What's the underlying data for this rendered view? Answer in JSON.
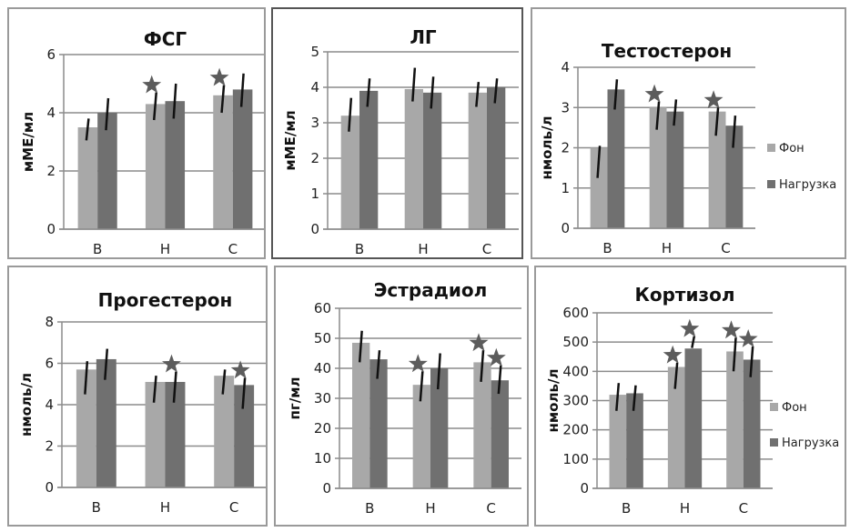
{
  "legend": {
    "series": [
      "Фон",
      "Нагрузка"
    ],
    "colors": [
      "#a8a8a8",
      "#707070"
    ]
  },
  "chart_data": [
    {
      "type": "bar",
      "title": "ФСГ",
      "ylabel": "мМЕ/мл",
      "xlabel": "",
      "categories": [
        "В",
        "Н",
        "С"
      ],
      "ylim": [
        0,
        6
      ],
      "yticks": [
        0,
        2,
        4,
        6
      ],
      "grid": true,
      "legend": "none",
      "series": [
        {
          "name": "Фон",
          "values": [
            3.5,
            4.3,
            4.6
          ],
          "err_low": [
            3.05,
            3.75,
            4.0
          ],
          "err_high": [
            3.8,
            4.7,
            4.95
          ]
        },
        {
          "name": "Нагрузка",
          "values": [
            4.0,
            4.4,
            4.8
          ],
          "err_low": [
            3.4,
            3.8,
            4.2
          ],
          "err_high": [
            4.5,
            5.0,
            5.35
          ]
        }
      ],
      "stars": [
        {
          "series": 0,
          "category": 1
        },
        {
          "series": 0,
          "category": 2
        }
      ]
    },
    {
      "type": "bar",
      "title": "ЛГ",
      "ylabel": "мМЕ/мл",
      "xlabel": "",
      "categories": [
        "В",
        "Н",
        "С"
      ],
      "ylim": [
        0,
        5
      ],
      "yticks": [
        0,
        1,
        2,
        3,
        4,
        5
      ],
      "grid": true,
      "legend": "none",
      "series": [
        {
          "name": "Фон",
          "values": [
            3.2,
            3.95,
            3.85
          ],
          "err_low": [
            2.75,
            3.6,
            3.45
          ],
          "err_high": [
            3.7,
            4.55,
            4.15
          ]
        },
        {
          "name": "Нагрузка",
          "values": [
            3.9,
            3.85,
            4.0
          ],
          "err_low": [
            3.45,
            3.4,
            3.55
          ],
          "err_high": [
            4.25,
            4.3,
            4.25
          ]
        }
      ],
      "stars": []
    },
    {
      "type": "bar",
      "title": "Тестостерон",
      "ylabel": "нмоль/л",
      "xlabel": "",
      "categories": [
        "В",
        "Н",
        "С"
      ],
      "ylim": [
        0,
        4
      ],
      "yticks": [
        0,
        1,
        2,
        3,
        4
      ],
      "grid": true,
      "legend": "right",
      "series": [
        {
          "name": "Фон",
          "values": [
            2.0,
            3.0,
            2.9
          ],
          "err_low": [
            1.25,
            2.45,
            2.3
          ],
          "err_high": [
            2.05,
            3.15,
            3.0
          ]
        },
        {
          "name": "Нагрузка",
          "values": [
            3.45,
            2.9,
            2.55
          ],
          "err_low": [
            2.95,
            2.55,
            2.0
          ],
          "err_high": [
            3.7,
            3.2,
            2.8
          ]
        }
      ],
      "stars": [
        {
          "series": 0,
          "category": 1
        },
        {
          "series": 0,
          "category": 2
        }
      ]
    },
    {
      "type": "bar",
      "title": "Прогестерон",
      "ylabel": "нмоль/л",
      "xlabel": "",
      "categories": [
        "В",
        "Н",
        "С"
      ],
      "ylim": [
        0,
        8
      ],
      "yticks": [
        0,
        2,
        4,
        6,
        8
      ],
      "grid": true,
      "legend": "none",
      "series": [
        {
          "name": "Фон",
          "values": [
            5.7,
            5.1,
            5.4
          ],
          "err_low": [
            4.5,
            4.1,
            4.5
          ],
          "err_high": [
            6.1,
            5.4,
            5.7
          ]
        },
        {
          "name": "Нагрузка",
          "values": [
            6.2,
            5.1,
            4.95
          ],
          "err_low": [
            5.2,
            4.1,
            3.8
          ],
          "err_high": [
            6.7,
            5.6,
            5.3
          ]
        }
      ],
      "stars": [
        {
          "series": 1,
          "category": 1
        },
        {
          "series": 1,
          "category": 2
        }
      ]
    },
    {
      "type": "bar",
      "title": "Эстрадиол",
      "ylabel": "пг/мл",
      "xlabel": "",
      "categories": [
        "В",
        "Н",
        "С"
      ],
      "ylim": [
        0,
        60
      ],
      "yticks": [
        0,
        10,
        20,
        30,
        40,
        50,
        60
      ],
      "grid": true,
      "legend": "none",
      "series": [
        {
          "name": "Фон",
          "values": [
            48.5,
            34.5,
            42.0
          ],
          "err_low": [
            42.0,
            29.0,
            35.5
          ],
          "err_high": [
            52.5,
            39.0,
            46.0
          ]
        },
        {
          "name": "Нагрузка",
          "values": [
            43.0,
            40.0,
            36.0
          ],
          "err_low": [
            36.5,
            33.0,
            31.5
          ],
          "err_high": [
            46.0,
            45.0,
            41.0
          ]
        }
      ],
      "stars": [
        {
          "series": 0,
          "category": 1
        },
        {
          "series": 0,
          "category": 2
        },
        {
          "series": 1,
          "category": 2
        }
      ]
    },
    {
      "type": "bar",
      "title": "Кортизол",
      "ylabel": "нмоль/л",
      "xlabel": "",
      "categories": [
        "В",
        "Н",
        "С"
      ],
      "ylim": [
        0,
        600
      ],
      "yticks": [
        0,
        100,
        200,
        300,
        400,
        500,
        600
      ],
      "grid": true,
      "legend": "right",
      "series": [
        {
          "name": "Фон",
          "values": [
            320,
            415,
            468
          ],
          "err_low": [
            265,
            340,
            400
          ],
          "err_high": [
            360,
            430,
            515
          ]
        },
        {
          "name": "Нагрузка",
          "values": [
            325,
            478,
            440
          ],
          "err_low": [
            265,
            480,
            380
          ],
          "err_high": [
            352,
            520,
            485
          ]
        }
      ],
      "stars": [
        {
          "series": 0,
          "category": 1
        },
        {
          "series": 1,
          "category": 1
        },
        {
          "series": 0,
          "category": 2
        },
        {
          "series": 1,
          "category": 2
        }
      ]
    }
  ]
}
